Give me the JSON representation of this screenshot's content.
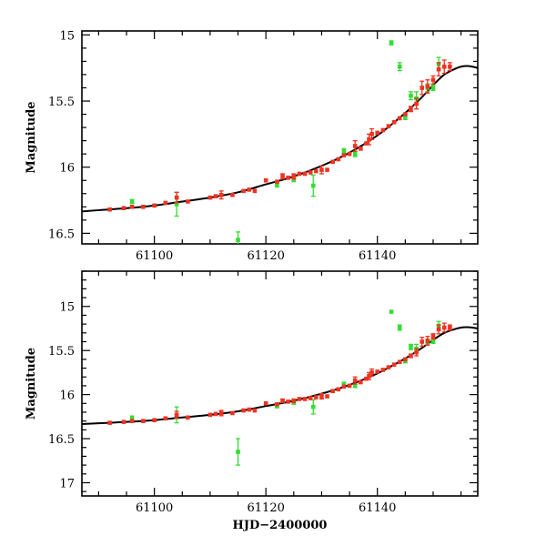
{
  "chart_data": [
    {
      "type": "scatter",
      "ylabel": "Magnitude",
      "xlabel": "",
      "xlim": [
        61087,
        61158
      ],
      "ylim": [
        16.58,
        14.97
      ],
      "y_inverted": true,
      "xticks": [
        61100,
        61120,
        61140
      ],
      "yticks": [
        15,
        15.5,
        16,
        16.5
      ],
      "colors": {
        "red": "#ee3322",
        "green": "#33dd33",
        "model": "#000000"
      },
      "series": [
        {
          "color": "red",
          "points": [
            {
              "x": 61092,
              "y": 16.32,
              "e": 0.01
            },
            {
              "x": 61094.5,
              "y": 16.31,
              "e": 0.01
            },
            {
              "x": 61096,
              "y": 16.3,
              "e": 0.01
            },
            {
              "x": 61098,
              "y": 16.3,
              "e": 0.01
            },
            {
              "x": 61100,
              "y": 16.29,
              "e": 0.01
            },
            {
              "x": 61102,
              "y": 16.27,
              "e": 0.01
            },
            {
              "x": 61104,
              "y": 16.23,
              "e": 0.04
            },
            {
              "x": 61106,
              "y": 16.26,
              "e": 0.01
            },
            {
              "x": 61110,
              "y": 16.23,
              "e": 0.01
            },
            {
              "x": 61111,
              "y": 16.22,
              "e": 0.01
            },
            {
              "x": 61112,
              "y": 16.21,
              "e": 0.03
            },
            {
              "x": 61114,
              "y": 16.21,
              "e": 0.01
            },
            {
              "x": 61116,
              "y": 16.18,
              "e": 0.01
            },
            {
              "x": 61117,
              "y": 16.17,
              "e": 0.01
            },
            {
              "x": 61118,
              "y": 16.18,
              "e": 0.01
            },
            {
              "x": 61120,
              "y": 16.1,
              "e": 0.01
            },
            {
              "x": 61122,
              "y": 16.11,
              "e": 0.01
            },
            {
              "x": 61123,
              "y": 16.07,
              "e": 0.02
            },
            {
              "x": 61124,
              "y": 16.08,
              "e": 0.01
            },
            {
              "x": 61125,
              "y": 16.07,
              "e": 0.02
            },
            {
              "x": 61126,
              "y": 16.05,
              "e": 0.01
            },
            {
              "x": 61127,
              "y": 16.05,
              "e": 0.01
            },
            {
              "x": 61128,
              "y": 16.04,
              "e": 0.01
            },
            {
              "x": 61129,
              "y": 16.03,
              "e": 0.01
            },
            {
              "x": 61130,
              "y": 16.02,
              "e": 0.03
            },
            {
              "x": 61131,
              "y": 16.02,
              "e": 0.01
            },
            {
              "x": 61132,
              "y": 15.96,
              "e": 0.01
            },
            {
              "x": 61133,
              "y": 15.94,
              "e": 0.01
            },
            {
              "x": 61134,
              "y": 15.91,
              "e": 0.01
            },
            {
              "x": 61135,
              "y": 15.9,
              "e": 0.01
            },
            {
              "x": 61136,
              "y": 15.84,
              "e": 0.04
            },
            {
              "x": 61137,
              "y": 15.86,
              "e": 0.01
            },
            {
              "x": 61138,
              "y": 15.82,
              "e": 0.01
            },
            {
              "x": 61138.5,
              "y": 15.79,
              "e": 0.04
            },
            {
              "x": 61139,
              "y": 15.75,
              "e": 0.04
            },
            {
              "x": 61140,
              "y": 15.74,
              "e": 0.01
            },
            {
              "x": 61141,
              "y": 15.72,
              "e": 0.01
            },
            {
              "x": 61142,
              "y": 15.69,
              "e": 0.01
            },
            {
              "x": 61143,
              "y": 15.66,
              "e": 0.01
            },
            {
              "x": 61144,
              "y": 15.63,
              "e": 0.01
            },
            {
              "x": 61145,
              "y": 15.6,
              "e": 0.01
            },
            {
              "x": 61146,
              "y": 15.56,
              "e": 0.02
            },
            {
              "x": 61147,
              "y": 15.52,
              "e": 0.04
            },
            {
              "x": 61148,
              "y": 15.4,
              "e": 0.05
            },
            {
              "x": 61149,
              "y": 15.39,
              "e": 0.05
            },
            {
              "x": 61150,
              "y": 15.34,
              "e": 0.03
            },
            {
              "x": 61151,
              "y": 15.26,
              "e": 0.05
            },
            {
              "x": 61152,
              "y": 15.24,
              "e": 0.05
            },
            {
              "x": 61153,
              "y": 15.24,
              "e": 0.03
            }
          ]
        },
        {
          "color": "green",
          "points": [
            {
              "x": 61096,
              "y": 16.26,
              "e": 0.015
            },
            {
              "x": 61104,
              "y": 16.28,
              "e": 0.09
            },
            {
              "x": 61115,
              "y": 16.55,
              "e": 0.06
            },
            {
              "x": 61122,
              "y": 16.13,
              "e": 0.02
            },
            {
              "x": 61125,
              "y": 16.09,
              "e": 0.02
            },
            {
              "x": 61128.5,
              "y": 16.14,
              "e": 0.08
            },
            {
              "x": 61134,
              "y": 15.88,
              "e": 0.02
            },
            {
              "x": 61136,
              "y": 15.9,
              "e": 0.02
            },
            {
              "x": 61142.5,
              "y": 15.06,
              "e": 0.015
            },
            {
              "x": 61144,
              "y": 15.24,
              "e": 0.03
            },
            {
              "x": 61145,
              "y": 15.62,
              "e": 0.02
            },
            {
              "x": 61146,
              "y": 15.46,
              "e": 0.03
            },
            {
              "x": 61147,
              "y": 15.48,
              "e": 0.05
            },
            {
              "x": 61149,
              "y": 15.4,
              "e": 0.03
            },
            {
              "x": 61150,
              "y": 15.4,
              "e": 0.02
            },
            {
              "x": 61151,
              "y": 15.22,
              "e": 0.05
            }
          ]
        }
      ],
      "model_curve": [
        {
          "x": 61087,
          "y": 16.335
        },
        {
          "x": 61090,
          "y": 16.325
        },
        {
          "x": 61095,
          "y": 16.31
        },
        {
          "x": 61100,
          "y": 16.29
        },
        {
          "x": 61105,
          "y": 16.26
        },
        {
          "x": 61110,
          "y": 16.23
        },
        {
          "x": 61115,
          "y": 16.19
        },
        {
          "x": 61120,
          "y": 16.13
        },
        {
          "x": 61125,
          "y": 16.07
        },
        {
          "x": 61130,
          "y": 15.99
        },
        {
          "x": 61135,
          "y": 15.89
        },
        {
          "x": 61140,
          "y": 15.76
        },
        {
          "x": 61145,
          "y": 15.59
        },
        {
          "x": 61148,
          "y": 15.47
        },
        {
          "x": 61150,
          "y": 15.38
        },
        {
          "x": 61152,
          "y": 15.3
        },
        {
          "x": 61154,
          "y": 15.255
        },
        {
          "x": 61155,
          "y": 15.24
        },
        {
          "x": 61156,
          "y": 15.235
        },
        {
          "x": 61157,
          "y": 15.24
        },
        {
          "x": 61158,
          "y": 15.25
        }
      ]
    },
    {
      "type": "scatter",
      "ylabel": "Magnitude",
      "xlabel": "HJD−2400000",
      "xlim": [
        61087,
        61158
      ],
      "ylim": [
        17.15,
        14.6
      ],
      "y_inverted": true,
      "xticks": [
        61100,
        61120,
        61140
      ],
      "yticks": [
        15,
        15.5,
        16,
        16.5,
        17
      ],
      "colors": {
        "red": "#ee3322",
        "green": "#33dd33",
        "model": "#000000"
      },
      "series": [
        {
          "color": "red",
          "points": [
            {
              "x": 61092,
              "y": 16.32,
              "e": 0.01
            },
            {
              "x": 61094.5,
              "y": 16.31,
              "e": 0.01
            },
            {
              "x": 61096,
              "y": 16.3,
              "e": 0.01
            },
            {
              "x": 61098,
              "y": 16.3,
              "e": 0.01
            },
            {
              "x": 61100,
              "y": 16.29,
              "e": 0.01
            },
            {
              "x": 61102,
              "y": 16.27,
              "e": 0.01
            },
            {
              "x": 61104,
              "y": 16.23,
              "e": 0.04
            },
            {
              "x": 61106,
              "y": 16.26,
              "e": 0.01
            },
            {
              "x": 61110,
              "y": 16.23,
              "e": 0.01
            },
            {
              "x": 61111,
              "y": 16.22,
              "e": 0.01
            },
            {
              "x": 61112,
              "y": 16.21,
              "e": 0.03
            },
            {
              "x": 61114,
              "y": 16.21,
              "e": 0.01
            },
            {
              "x": 61116,
              "y": 16.18,
              "e": 0.01
            },
            {
              "x": 61117,
              "y": 16.17,
              "e": 0.01
            },
            {
              "x": 61118,
              "y": 16.18,
              "e": 0.01
            },
            {
              "x": 61120,
              "y": 16.1,
              "e": 0.01
            },
            {
              "x": 61122,
              "y": 16.11,
              "e": 0.01
            },
            {
              "x": 61123,
              "y": 16.07,
              "e": 0.02
            },
            {
              "x": 61124,
              "y": 16.08,
              "e": 0.01
            },
            {
              "x": 61125,
              "y": 16.07,
              "e": 0.02
            },
            {
              "x": 61126,
              "y": 16.05,
              "e": 0.01
            },
            {
              "x": 61127,
              "y": 16.05,
              "e": 0.01
            },
            {
              "x": 61128,
              "y": 16.04,
              "e": 0.01
            },
            {
              "x": 61129,
              "y": 16.03,
              "e": 0.01
            },
            {
              "x": 61130,
              "y": 16.02,
              "e": 0.03
            },
            {
              "x": 61131,
              "y": 16.02,
              "e": 0.01
            },
            {
              "x": 61132,
              "y": 15.96,
              "e": 0.01
            },
            {
              "x": 61133,
              "y": 15.94,
              "e": 0.01
            },
            {
              "x": 61134,
              "y": 15.91,
              "e": 0.01
            },
            {
              "x": 61135,
              "y": 15.9,
              "e": 0.01
            },
            {
              "x": 61136,
              "y": 15.84,
              "e": 0.04
            },
            {
              "x": 61137,
              "y": 15.86,
              "e": 0.01
            },
            {
              "x": 61138,
              "y": 15.82,
              "e": 0.01
            },
            {
              "x": 61138.5,
              "y": 15.79,
              "e": 0.04
            },
            {
              "x": 61139,
              "y": 15.75,
              "e": 0.04
            },
            {
              "x": 61140,
              "y": 15.74,
              "e": 0.01
            },
            {
              "x": 61141,
              "y": 15.72,
              "e": 0.01
            },
            {
              "x": 61142,
              "y": 15.69,
              "e": 0.01
            },
            {
              "x": 61143,
              "y": 15.66,
              "e": 0.01
            },
            {
              "x": 61144,
              "y": 15.63,
              "e": 0.01
            },
            {
              "x": 61145,
              "y": 15.6,
              "e": 0.01
            },
            {
              "x": 61146,
              "y": 15.56,
              "e": 0.02
            },
            {
              "x": 61147,
              "y": 15.52,
              "e": 0.04
            },
            {
              "x": 61148,
              "y": 15.4,
              "e": 0.05
            },
            {
              "x": 61149,
              "y": 15.39,
              "e": 0.05
            },
            {
              "x": 61150,
              "y": 15.34,
              "e": 0.03
            },
            {
              "x": 61151,
              "y": 15.26,
              "e": 0.05
            },
            {
              "x": 61152,
              "y": 15.24,
              "e": 0.05
            },
            {
              "x": 61153,
              "y": 15.24,
              "e": 0.03
            }
          ]
        },
        {
          "color": "green",
          "points": [
            {
              "x": 61096,
              "y": 16.26,
              "e": 0.015
            },
            {
              "x": 61104,
              "y": 16.23,
              "e": 0.09
            },
            {
              "x": 61115,
              "y": 16.65,
              "e": 0.15
            },
            {
              "x": 61122,
              "y": 16.13,
              "e": 0.02
            },
            {
              "x": 61125,
              "y": 16.09,
              "e": 0.02
            },
            {
              "x": 61128.5,
              "y": 16.14,
              "e": 0.08
            },
            {
              "x": 61134,
              "y": 15.88,
              "e": 0.02
            },
            {
              "x": 61136,
              "y": 15.9,
              "e": 0.02
            },
            {
              "x": 61142.5,
              "y": 15.06,
              "e": 0.015
            },
            {
              "x": 61144,
              "y": 15.24,
              "e": 0.03
            },
            {
              "x": 61145,
              "y": 15.62,
              "e": 0.02
            },
            {
              "x": 61146,
              "y": 15.46,
              "e": 0.03
            },
            {
              "x": 61147,
              "y": 15.48,
              "e": 0.05
            },
            {
              "x": 61149,
              "y": 15.4,
              "e": 0.03
            },
            {
              "x": 61150,
              "y": 15.4,
              "e": 0.02
            },
            {
              "x": 61151,
              "y": 15.22,
              "e": 0.05
            }
          ]
        }
      ],
      "model_curve": [
        {
          "x": 61087,
          "y": 16.335
        },
        {
          "x": 61090,
          "y": 16.325
        },
        {
          "x": 61095,
          "y": 16.31
        },
        {
          "x": 61100,
          "y": 16.29
        },
        {
          "x": 61105,
          "y": 16.26
        },
        {
          "x": 61110,
          "y": 16.23
        },
        {
          "x": 61115,
          "y": 16.19
        },
        {
          "x": 61120,
          "y": 16.13
        },
        {
          "x": 61125,
          "y": 16.07
        },
        {
          "x": 61130,
          "y": 15.99
        },
        {
          "x": 61135,
          "y": 15.89
        },
        {
          "x": 61140,
          "y": 15.76
        },
        {
          "x": 61145,
          "y": 15.59
        },
        {
          "x": 61148,
          "y": 15.47
        },
        {
          "x": 61150,
          "y": 15.38
        },
        {
          "x": 61152,
          "y": 15.3
        },
        {
          "x": 61154,
          "y": 15.255
        },
        {
          "x": 61155,
          "y": 15.24
        },
        {
          "x": 61156,
          "y": 15.235
        },
        {
          "x": 61157,
          "y": 15.24
        },
        {
          "x": 61158,
          "y": 15.25
        }
      ]
    }
  ]
}
